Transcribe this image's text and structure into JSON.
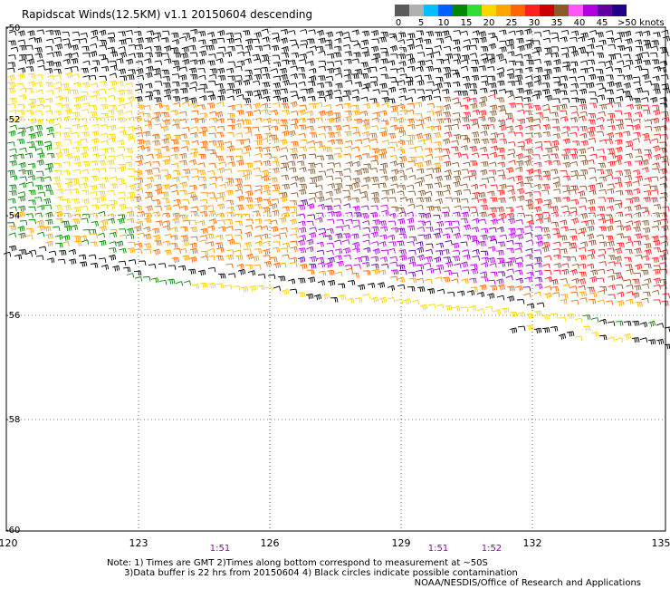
{
  "title": "Rapidscat Winds(12.5KM) v1.1 20150604 descending",
  "colorbar": {
    "ticks": [
      "0",
      "5",
      "10",
      "15",
      "20",
      "25",
      "30",
      "35",
      "40",
      "45"
    ],
    "unit_label": ">50 knots",
    "colors": [
      "#5a5a5a",
      "#b0b0b0",
      "#00bfff",
      "#0060ff",
      "#008800",
      "#33dd33",
      "#ffd700",
      "#ffa500",
      "#ff6600",
      "#ff2020",
      "#cc0000",
      "#8b5a2b",
      "#ff55ff",
      "#b000e0",
      "#6000a0",
      "#20008a"
    ]
  },
  "axes": {
    "lat_labels": [
      "-50",
      "-52",
      "-54",
      "-56",
      "-58",
      "-60"
    ],
    "lon_labels": [
      "120",
      "123",
      "126",
      "129",
      "132",
      "135"
    ]
  },
  "times": [
    "1:51",
    "1:51",
    "1:52"
  ],
  "note": "Note: 1) Times are GMT 2)Times along bottom correspond to measurement at ~50S\n      3)Data buffer is 22 hrs from 20150604 4) Black circles indicate possible contamination",
  "credit": "NOAA/NESDIS/Office of Research and Applications"
}
